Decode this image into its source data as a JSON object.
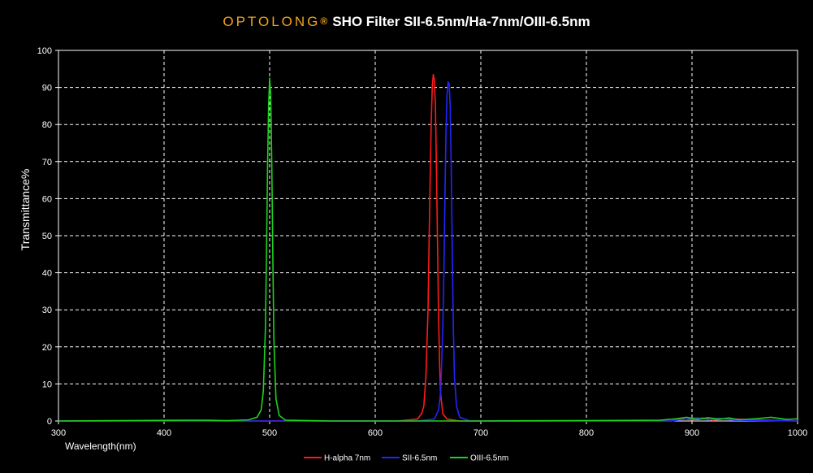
{
  "chart_data": {
    "type": "line",
    "title_brand": "OPTOLONG",
    "title_reg": "®",
    "title": "SHO Filter SII-6.5nm/Ha-7nm/OIII-6.5nm",
    "xlabel": "Wavelength(nm)",
    "ylabel": "Transmittance%",
    "xlim": [
      300,
      1000
    ],
    "ylim": [
      0,
      100
    ],
    "xticks": [
      300,
      400,
      500,
      600,
      700,
      800,
      900,
      1000
    ],
    "yticks": [
      0,
      10,
      20,
      30,
      40,
      50,
      60,
      70,
      80,
      90,
      100
    ],
    "grid": true,
    "legend_position": "bottom-center",
    "series": [
      {
        "name": "H-alpha 7nm",
        "color": "#ff1a1a",
        "points": [
          [
            300,
            0
          ],
          [
            620,
            0
          ],
          [
            640,
            0.5
          ],
          [
            644,
            2
          ],
          [
            646,
            4
          ],
          [
            648,
            12
          ],
          [
            650,
            30
          ],
          [
            651,
            48
          ],
          [
            652,
            65
          ],
          [
            653,
            80
          ],
          [
            654,
            90
          ],
          [
            655,
            93.5
          ],
          [
            656,
            92
          ],
          [
            657,
            85
          ],
          [
            658,
            68
          ],
          [
            659,
            48
          ],
          [
            660,
            28
          ],
          [
            661,
            15
          ],
          [
            662,
            7
          ],
          [
            664,
            2
          ],
          [
            668,
            0.5
          ],
          [
            680,
            0
          ],
          [
            880,
            0
          ],
          [
            890,
            0.6
          ],
          [
            900,
            0.3
          ],
          [
            910,
            0.8
          ],
          [
            920,
            0.2
          ],
          [
            930,
            0.6
          ],
          [
            1000,
            0
          ]
        ]
      },
      {
        "name": "SII-6.5nm",
        "color": "#2424ff",
        "points": [
          [
            300,
            0
          ],
          [
            640,
            0
          ],
          [
            656,
            0.5
          ],
          [
            660,
            3
          ],
          [
            662,
            8
          ],
          [
            664,
            25
          ],
          [
            665,
            40
          ],
          [
            666,
            60
          ],
          [
            667,
            78
          ],
          [
            668,
            88
          ],
          [
            669,
            91.5
          ],
          [
            670,
            91
          ],
          [
            671,
            85
          ],
          [
            672,
            68
          ],
          [
            673,
            45
          ],
          [
            674,
            25
          ],
          [
            675,
            12
          ],
          [
            677,
            4
          ],
          [
            680,
            1
          ],
          [
            690,
            0
          ],
          [
            880,
            0
          ],
          [
            895,
            0.5
          ],
          [
            905,
            0.9
          ],
          [
            915,
            0.3
          ],
          [
            925,
            0.7
          ],
          [
            940,
            0.2
          ],
          [
            1000,
            0
          ]
        ]
      },
      {
        "name": "OIII-6.5nm",
        "color": "#1ed21e",
        "points": [
          [
            300,
            0
          ],
          [
            420,
            0.2
          ],
          [
            440,
            0.2
          ],
          [
            460,
            0.1
          ],
          [
            480,
            0.3
          ],
          [
            488,
            1
          ],
          [
            492,
            3
          ],
          [
            494,
            8
          ],
          [
            496,
            25
          ],
          [
            497,
            45
          ],
          [
            498,
            68
          ],
          [
            499,
            85
          ],
          [
            500,
            92.5
          ],
          [
            501,
            88
          ],
          [
            502,
            70
          ],
          [
            503,
            45
          ],
          [
            504,
            22
          ],
          [
            506,
            6
          ],
          [
            509,
            1.5
          ],
          [
            515,
            0.2
          ],
          [
            560,
            0
          ],
          [
            700,
            0
          ],
          [
            870,
            0.2
          ],
          [
            885,
            0.6
          ],
          [
            895,
            1
          ],
          [
            905,
            0.4
          ],
          [
            915,
            0.9
          ],
          [
            925,
            0.5
          ],
          [
            935,
            0.8
          ],
          [
            945,
            0.3
          ],
          [
            960,
            0.6
          ],
          [
            975,
            1
          ],
          [
            990,
            0.4
          ],
          [
            1000,
            0.6
          ]
        ]
      }
    ]
  }
}
